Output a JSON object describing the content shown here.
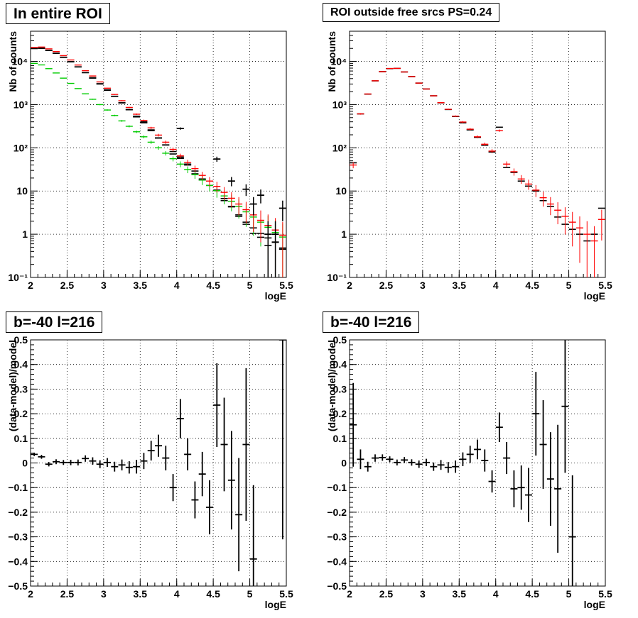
{
  "colors": {
    "data": "#000000",
    "model": "#ff0000",
    "blue": "#0000ff",
    "green": "#00cc00",
    "grid": "#000000"
  },
  "chart_data": [
    {
      "type": "scatter",
      "title": "In entire ROI",
      "xlabel": "logE",
      "ylabel": "Nb of counts",
      "log_y": true,
      "xlim": [
        2,
        5.5
      ],
      "ylim": [
        0.1,
        50000
      ],
      "x_ticks": [
        "2",
        "2.5",
        "3",
        "3.5",
        "4",
        "4.5",
        "5",
        "5.5"
      ],
      "y_ticks": [
        "10⁻¹",
        "1",
        "10",
        "10²",
        "10³",
        "10⁴"
      ],
      "grid": true,
      "x": [
        2.05,
        2.15,
        2.25,
        2.35,
        2.45,
        2.55,
        2.65,
        2.75,
        2.85,
        2.95,
        3.05,
        3.15,
        3.25,
        3.35,
        3.45,
        3.55,
        3.65,
        3.75,
        3.85,
        3.95,
        4.05,
        4.15,
        4.25,
        4.35,
        4.45,
        4.55,
        4.65,
        4.75,
        4.85,
        4.95,
        5.05,
        5.15,
        5.25,
        5.35,
        5.45
      ],
      "series": [
        {
          "color_key": "data",
          "values": [
            20500,
            20500,
            18000,
            15500,
            12500,
            9900,
            7500,
            5500,
            4100,
            3000,
            2150,
            1550,
            1100,
            760,
            520,
            380,
            250,
            168,
            117,
            72,
            57,
            40,
            25,
            18,
            13.5,
            10.5,
            6,
            4.3,
            2.6,
            1.7,
            1.05,
            0.85,
            0.55,
            0.65,
            0.45
          ]
        },
        {
          "color_key": "data",
          "values": [
            19800,
            20000,
            17900,
            15400,
            12400,
            9800,
            7450,
            5500,
            4200,
            3050,
            2200,
            1560,
            1100,
            770,
            540,
            400,
            260,
            170,
            116,
            82,
            61,
            42,
            29,
            19,
            13.5,
            10.2,
            6.7,
            4.4,
            2.8,
            1.9,
            1.4,
            1.05,
            0.82,
            0.66,
            0.48
          ]
        },
        {
          "color_key": "green",
          "values": [
            9000,
            8300,
            6800,
            5400,
            4100,
            3100,
            2350,
            1780,
            1330,
            1000,
            750,
            560,
            420,
            315,
            235,
            180,
            135,
            100,
            75,
            56,
            42,
            31.5,
            24,
            18,
            13.5,
            10.2,
            7.7,
            5.8,
            4.4,
            3.3,
            2.5,
            1.9,
            1.45,
            1.1,
            0.86
          ]
        },
        {
          "color_key": "model",
          "values": [
            21000,
            21500,
            19500,
            16900,
            13600,
            10800,
            8250,
            6100,
            4600,
            3350,
            2400,
            1720,
            1230,
            860,
            600,
            430,
            290,
            197,
            135,
            92,
            65,
            46,
            33,
            23,
            17,
            12.8,
            9.3,
            6.8,
            5,
            3.7,
            2.8,
            2.1,
            1.6,
            1.25,
            0.95
          ]
        }
      ],
      "point_values": [
        {
          "x": 4.05,
          "y": 280
        },
        {
          "x": 4.55,
          "y": 55
        },
        {
          "x": 4.75,
          "y": 17
        },
        {
          "x": 4.95,
          "y": 11
        },
        {
          "x": 5.05,
          "y": 5
        },
        {
          "x": 5.15,
          "y": 8
        },
        {
          "x": 5.25,
          "y": 1
        },
        {
          "x": 5.35,
          "y": 1
        },
        {
          "x": 5.45,
          "y": 4
        }
      ]
    },
    {
      "type": "scatter",
      "title": "ROI outside free srcs PS=0.24",
      "xlabel": "logE",
      "ylabel": "Nb of counts",
      "log_y": true,
      "xlim": [
        2,
        5.5
      ],
      "ylim": [
        0.1,
        50000
      ],
      "x_ticks": [
        "2",
        "2.5",
        "3",
        "3.5",
        "4",
        "4.5",
        "5",
        "5.5"
      ],
      "y_ticks": [
        "10⁻¹",
        "1",
        "10",
        "10²",
        "10³",
        "10⁴"
      ],
      "grid": true,
      "x": [
        2.05,
        2.15,
        2.25,
        2.35,
        2.45,
        2.55,
        2.65,
        2.75,
        2.85,
        2.95,
        3.05,
        3.15,
        3.25,
        3.35,
        3.45,
        3.55,
        3.65,
        3.75,
        3.85,
        3.95,
        4.05,
        4.15,
        4.25,
        4.35,
        4.45,
        4.55,
        4.65,
        4.75,
        4.85,
        4.95,
        5.05,
        5.15,
        5.25,
        5.35,
        5.45
      ],
      "series": [
        {
          "color_key": "data",
          "values": [
            45,
            610,
            1750,
            3550,
            5800,
            6800,
            6900,
            5700,
            4450,
            3150,
            2300,
            1600,
            1100,
            770,
            530,
            380,
            260,
            175,
            115,
            80,
            300,
            35,
            27,
            17,
            13,
            10,
            6,
            4.4,
            2.5,
            1.7,
            1.3,
            1,
            0.7,
            1,
            4
          ]
        },
        {
          "color_key": "model",
          "values": [
            40,
            610,
            1760,
            3560,
            5800,
            6850,
            6900,
            5700,
            4450,
            3150,
            2300,
            1600,
            1110,
            780,
            540,
            395,
            270,
            180,
            121,
            84,
            250,
            42,
            28,
            19,
            14.5,
            10.5,
            7,
            5,
            3.6,
            2.6,
            1.9,
            1.4,
            1,
            0.7,
            2.2
          ]
        }
      ]
    },
    {
      "type": "scatter",
      "title": "b=-40 l=216",
      "xlabel": "logE",
      "ylabel": "(data-model)/model",
      "xlim": [
        2,
        5.5
      ],
      "ylim": [
        -0.5,
        0.5
      ],
      "x_ticks": [
        "2",
        "2.5",
        "3",
        "3.5",
        "4",
        "4.5",
        "5",
        "5.5"
      ],
      "y_ticks": [
        "−0.5",
        "−0.4",
        "−0.3",
        "−0.2",
        "−0.1",
        "0",
        "0.1",
        "0.2",
        "0.3",
        "0.4",
        "0.5"
      ],
      "grid": true,
      "x": [
        2.05,
        2.15,
        2.25,
        2.35,
        2.45,
        2.55,
        2.65,
        2.75,
        2.85,
        2.95,
        3.05,
        3.15,
        3.25,
        3.35,
        3.45,
        3.55,
        3.65,
        3.75,
        3.85,
        3.95,
        4.05,
        4.15,
        4.25,
        4.35,
        4.45,
        4.55,
        4.65,
        4.75,
        4.85,
        4.95,
        5.05,
        5.15,
        5.25,
        5.35,
        5.45
      ],
      "values": [
        0.035,
        0.025,
        -0.005,
        0.005,
        0.002,
        0.002,
        0.002,
        0.018,
        0.008,
        -0.005,
        0.002,
        -0.015,
        -0.008,
        -0.018,
        -0.015,
        0.008,
        0.05,
        0.07,
        0.02,
        -0.1,
        0.18,
        0.035,
        -0.15,
        -0.045,
        -0.18,
        0.235,
        0.075,
        -0.07,
        -0.21,
        0.075,
        -0.39,
        null,
        null,
        null,
        0.5
      ],
      "errors": [
        0.007,
        0.008,
        0.009,
        0.01,
        0.01,
        0.011,
        0.012,
        0.013,
        0.015,
        0.016,
        0.018,
        0.02,
        0.022,
        0.025,
        0.028,
        0.033,
        0.04,
        0.045,
        0.05,
        0.055,
        0.08,
        0.065,
        0.075,
        0.09,
        0.11,
        0.17,
        0.19,
        0.2,
        0.23,
        0.31,
        0.3,
        null,
        null,
        null,
        0.81
      ]
    },
    {
      "type": "scatter",
      "title": "b=-40 l=216",
      "xlabel": "logE",
      "ylabel": "(data-model)/model",
      "xlim": [
        2,
        5.5
      ],
      "ylim": [
        -0.5,
        0.5
      ],
      "x_ticks": [
        "2",
        "2.5",
        "3",
        "3.5",
        "4",
        "4.5",
        "5",
        "5.5"
      ],
      "y_ticks": [
        "−0.5",
        "−0.4",
        "−0.3",
        "−0.2",
        "−0.1",
        "0",
        "0.1",
        "0.2",
        "0.3",
        "0.4",
        "0.5"
      ],
      "grid": true,
      "x": [
        2.05,
        2.15,
        2.25,
        2.35,
        2.45,
        2.55,
        2.65,
        2.75,
        2.85,
        2.95,
        3.05,
        3.15,
        3.25,
        3.35,
        3.45,
        3.55,
        3.65,
        3.75,
        3.85,
        3.95,
        4.05,
        4.15,
        4.25,
        4.35,
        4.45,
        4.55,
        4.65,
        4.75,
        4.85,
        4.95,
        5.05,
        5.15,
        5.25,
        5.35,
        5.45
      ],
      "values": [
        0.155,
        0.015,
        -0.015,
        0.02,
        0.022,
        0.015,
        0.002,
        0.012,
        0.002,
        -0.005,
        0.002,
        -0.015,
        -0.008,
        -0.018,
        -0.015,
        0.015,
        0.035,
        0.055,
        0.01,
        -0.075,
        0.145,
        0.02,
        -0.105,
        -0.1,
        -0.13,
        0.2,
        0.075,
        -0.065,
        -0.105,
        0.23,
        -0.3,
        null,
        null,
        null,
        null
      ],
      "errors": [
        0.17,
        0.04,
        0.02,
        0.015,
        0.013,
        0.012,
        0.012,
        0.012,
        0.013,
        0.015,
        0.015,
        0.017,
        0.02,
        0.022,
        0.025,
        0.028,
        0.035,
        0.04,
        0.045,
        0.045,
        0.06,
        0.065,
        0.075,
        0.09,
        0.11,
        0.17,
        0.18,
        0.19,
        0.26,
        0.27,
        0.25,
        null,
        null,
        null,
        null
      ]
    }
  ]
}
